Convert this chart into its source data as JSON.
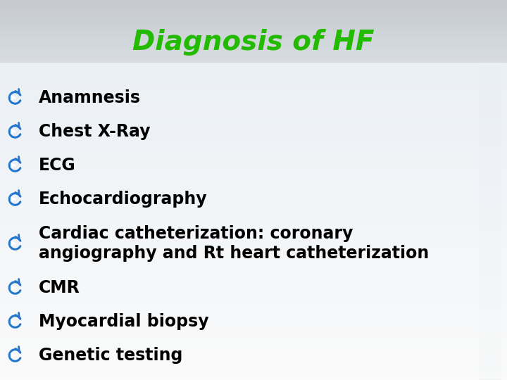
{
  "title": "Diagnosis of HF",
  "title_color": "#22bb00",
  "title_fontsize": 28,
  "bullet_color": "#2277cc",
  "text_color": "#000000",
  "text_fontsize": 17,
  "items": [
    {
      "text": "Anamnesis",
      "lines": 1
    },
    {
      "text": "Chest X-Ray",
      "lines": 1
    },
    {
      "text": "ECG",
      "lines": 1
    },
    {
      "text": "Echocardiography",
      "lines": 1
    },
    {
      "text": "Cardiac catheterization: coronary\nangiography and Rt heart catheterization",
      "lines": 2
    },
    {
      "text": "CMR",
      "lines": 1
    },
    {
      "text": "Myocardial biopsy",
      "lines": 1
    },
    {
      "text": "Genetic testing",
      "lines": 1
    }
  ],
  "bg_stripe_colors": [
    "#c8cfd4",
    "#d8e0e8",
    "#e0e8ee",
    "#eef2f6"
  ],
  "content_bg": "#eef4f8",
  "top_bg": "#c4ccd4",
  "right_bg_color": "#c0ccd6",
  "left_bg_color": "#c0ccd6"
}
